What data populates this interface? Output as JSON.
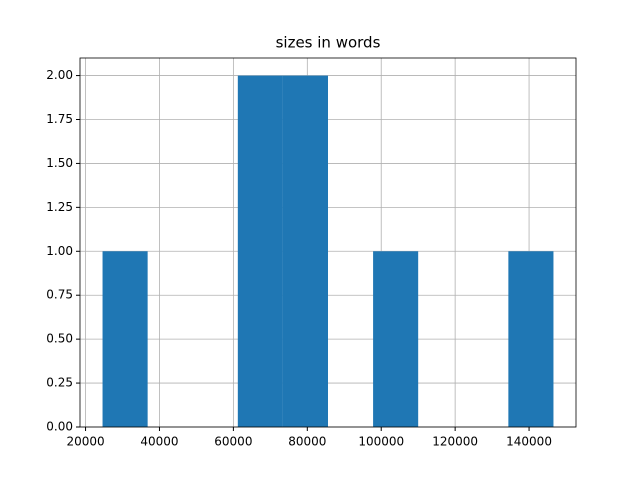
{
  "chart_data": {
    "type": "histogram",
    "title": "sizes in words",
    "bins": [
      24600,
      36800,
      49000,
      61200,
      73400,
      85600,
      97800,
      110000,
      122200,
      134400,
      146600
    ],
    "counts": [
      1,
      0,
      0,
      2,
      2,
      0,
      1,
      0,
      0,
      1
    ],
    "color": "#1f77b4",
    "xlim": [
      18500,
      152700
    ],
    "xticks": [
      20000,
      40000,
      60000,
      80000,
      100000,
      120000,
      140000
    ],
    "ylim": [
      0,
      2.1
    ],
    "yticks": [
      {
        "value": 0,
        "label": "0.00"
      },
      {
        "value": 0.25,
        "label": "0.25"
      },
      {
        "value": 0.5,
        "label": "0.50"
      },
      {
        "value": 0.75,
        "label": "0.75"
      },
      {
        "value": 1,
        "label": "1.00"
      },
      {
        "value": 1.25,
        "label": "1.25"
      },
      {
        "value": 1.5,
        "label": "1.50"
      },
      {
        "value": 1.75,
        "label": "1.75"
      },
      {
        "value": 2,
        "label": "2.00"
      }
    ],
    "grid": true
  }
}
